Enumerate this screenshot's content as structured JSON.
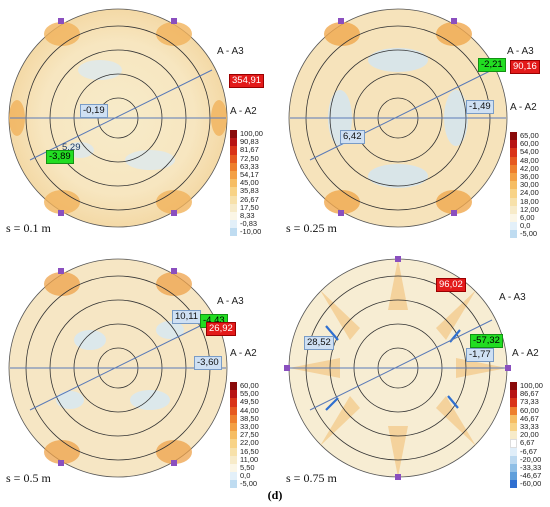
{
  "figure_label": "(d)",
  "panels": [
    {
      "s_label": "s = 0.1 m",
      "axis_a3": "A - A3",
      "axis_a2": "A - A2",
      "values": [
        {
          "text": "354,91",
          "style": "red"
        },
        {
          "text": "-0,19",
          "style": "blue"
        },
        {
          "text": "5,29",
          "style": "plain"
        },
        {
          "text": "-3,89",
          "style": "green"
        }
      ],
      "legend": [
        "100,00",
        "90,83",
        "81,67",
        "72,50",
        "63,33",
        "54,17",
        "45,00",
        "35,83",
        "26,67",
        "17,50",
        "8,33",
        "-0,83",
        "-10,00"
      ]
    },
    {
      "s_label": "s = 0.25 m",
      "axis_a3": "A - A3",
      "axis_a2": "A - A2",
      "values": [
        {
          "text": "-2,21",
          "style": "green"
        },
        {
          "text": "90,16",
          "style": "red"
        },
        {
          "text": "-1,49",
          "style": "blue"
        },
        {
          "text": "6,42",
          "style": "blue"
        }
      ],
      "legend": [
        "65,00",
        "60,00",
        "54,00",
        "48,00",
        "42,00",
        "36,00",
        "30,00",
        "24,00",
        "18,00",
        "12,00",
        "6,00",
        "0,0",
        "-5,00"
      ]
    },
    {
      "s_label": "s = 0.5 m",
      "axis_a3": "A - A3",
      "axis_a2": "A - A2",
      "values": [
        {
          "text": "10,11",
          "style": "blue"
        },
        {
          "text": "-4,43",
          "style": "green"
        },
        {
          "text": "26,92",
          "style": "red"
        },
        {
          "text": "-3,60",
          "style": "blue"
        }
      ],
      "legend": [
        "60,00",
        "55,00",
        "49,50",
        "44,00",
        "38,50",
        "33,00",
        "27,50",
        "22,00",
        "16,50",
        "11,00",
        "5,50",
        "0,0",
        "-5,00"
      ]
    },
    {
      "s_label": "s = 0.75 m",
      "axis_a3": "A - A3",
      "axis_a2": "A - A2",
      "values": [
        {
          "text": "96,02",
          "style": "red"
        },
        {
          "text": "-57,32",
          "style": "green"
        },
        {
          "text": "28,52",
          "style": "blue"
        },
        {
          "text": "-1,77",
          "style": "blue"
        }
      ],
      "legend": [
        "100,00",
        "86,67",
        "73,33",
        "60,00",
        "46,67",
        "33,33",
        "20,00",
        "6,67",
        "-6,67",
        "-20,00",
        "-33,33",
        "-46,67",
        "-60,00"
      ]
    }
  ],
  "legend_colors": [
    "#8a0a0a",
    "#b81414",
    "#d93318",
    "#e6591f",
    "#ee7f2d",
    "#f3a045",
    "#f6bd63",
    "#f8d386",
    "#f7e1aa",
    "#f7ebc9",
    "#fbf6e6",
    "#e3f0f9",
    "#bfdcf1"
  ],
  "legend_colors_neg": [
    "#8a0a0a",
    "#b81414",
    "#d93318",
    "#ee7f2d",
    "#f6bd63",
    "#f8d386",
    "#f7ebc9",
    "#ffffff",
    "#e0eef9",
    "#bcd9f0",
    "#8fbfe6",
    "#5f9fdb",
    "#2f6fd0"
  ]
}
